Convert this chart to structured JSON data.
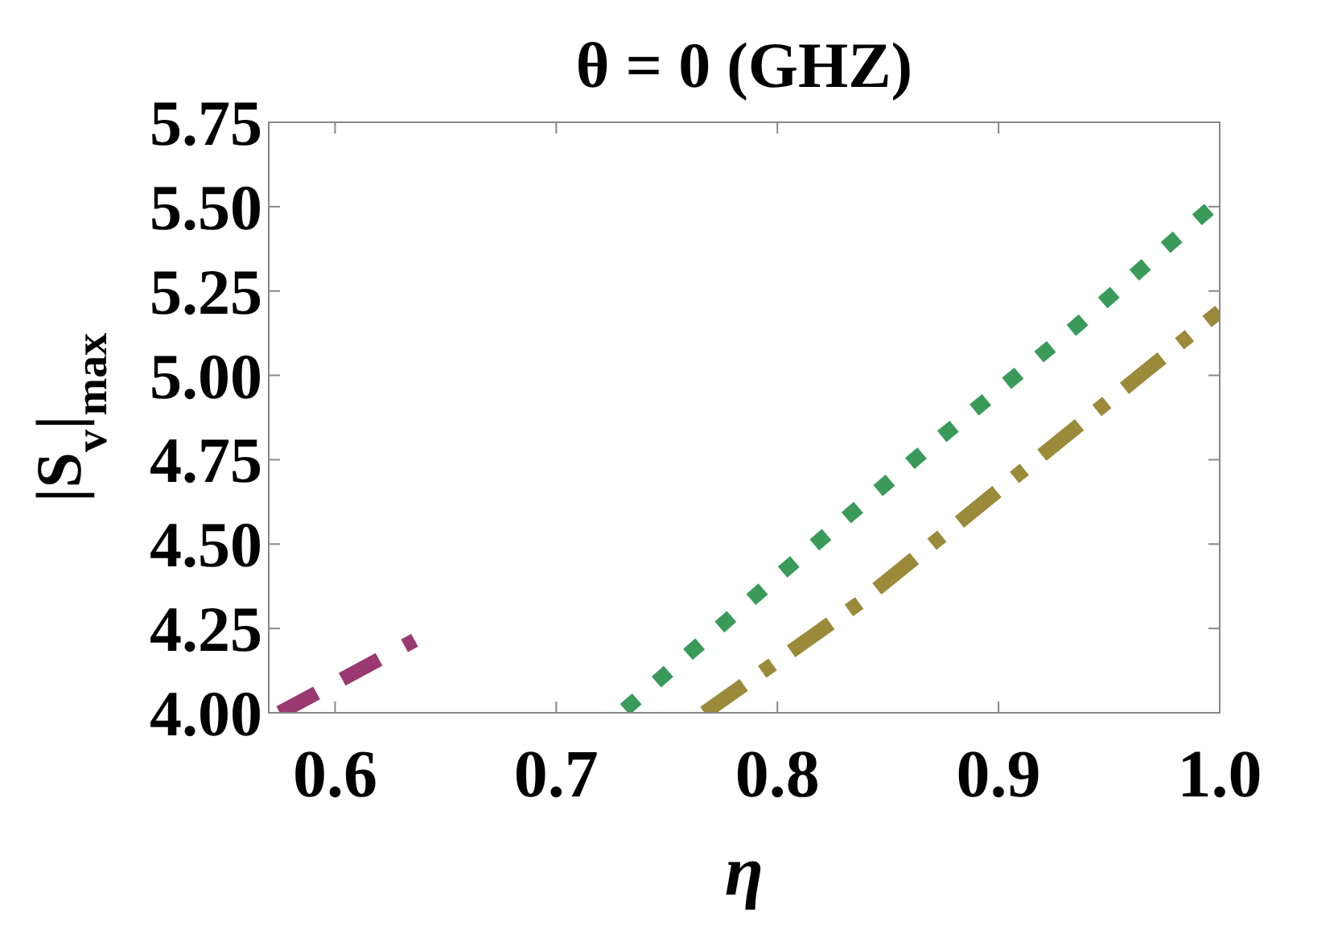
{
  "chart_data": {
    "type": "line",
    "title": "θ = 0 (GHZ)",
    "xlabel": "η",
    "ylabel": "|S$_{v}$|$_{max}$",
    "xlim": [
      0.57,
      1.0
    ],
    "ylim": [
      4.0,
      5.75
    ],
    "xticks": [
      0.6,
      0.7,
      0.8,
      0.9,
      {
        "value": 1.0,
        "label": "1.0"
      }
    ],
    "yticks": [
      {
        "value": 4.0,
        "label": "4.00"
      },
      4.25,
      {
        "value": 4.5,
        "label": "4.50"
      },
      4.75,
      {
        "value": 5.0,
        "label": "5.00"
      },
      5.25,
      {
        "value": 5.5,
        "label": "5.50"
      },
      5.75
    ],
    "grid": false,
    "series": [
      {
        "color": "#9b3a72",
        "line_style": "dashed",
        "x": [
          0.575,
          0.636
        ],
        "values": [
          4.0,
          4.215
        ]
      },
      {
        "color": "#3a9a5a",
        "line_style": "dotted",
        "x": [
          0.731,
          0.802,
          0.869,
          0.935,
          1.0
        ],
        "values": [
          4.01,
          4.415,
          4.79,
          5.145,
          5.52
        ]
      },
      {
        "color": "#9a8a3a",
        "line_style": "dashdot",
        "x": [
          0.767,
          0.838,
          0.902,
          0.966,
          1.0
        ],
        "values": [
          4.0,
          4.33,
          4.67,
          5.01,
          5.19
        ]
      }
    ]
  }
}
